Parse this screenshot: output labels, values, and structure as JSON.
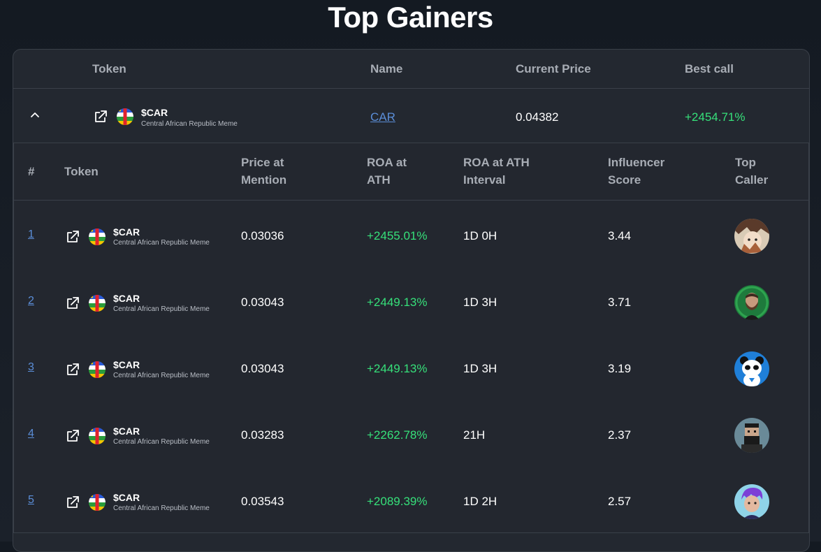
{
  "title": "Top Gainers",
  "outer_headers": {
    "token": "Token",
    "name": "Name",
    "current_price": "Current Price",
    "best_call": "Best call"
  },
  "outer_row": {
    "symbol": "$CAR",
    "full_name": "Central African Republic Meme",
    "name_link": "CAR",
    "current_price": "0.04382",
    "best_call": "+2454.71%",
    "expand_icon": "chevron-up-icon"
  },
  "inner_headers": {
    "rank": "#",
    "token": "Token",
    "price_at_mention": "Price at\nMention",
    "roa_at_ath": "ROA at\nATH",
    "roa_interval": "ROA at ATH\nInterval",
    "influencer_score": "Influencer\nScore",
    "top_caller": "Top\nCaller"
  },
  "rows": [
    {
      "rank": "1",
      "symbol": "$CAR",
      "full_name": "Central African Republic Meme",
      "price": "0.03036",
      "roa": "+2455.01%",
      "interval": "1D 0H",
      "score": "3.44",
      "avatar": "anime-avatar"
    },
    {
      "rank": "2",
      "symbol": "$CAR",
      "full_name": "Central African Republic Meme",
      "price": "0.03043",
      "roa": "+2449.13%",
      "interval": "1D 3H",
      "score": "3.71",
      "avatar": "bearded-man-avatar"
    },
    {
      "rank": "3",
      "symbol": "$CAR",
      "full_name": "Central African Republic Meme",
      "price": "0.03043",
      "roa": "+2449.13%",
      "interval": "1D 3H",
      "score": "3.19",
      "avatar": "panda-avatar"
    },
    {
      "rank": "4",
      "symbol": "$CAR",
      "full_name": "Central African Republic Meme",
      "price": "0.03283",
      "roa": "+2262.78%",
      "interval": "21H",
      "score": "2.37",
      "avatar": "pixel-man-avatar"
    },
    {
      "rank": "5",
      "symbol": "$CAR",
      "full_name": "Central African Republic Meme",
      "price": "0.03543",
      "roa": "+2089.39%",
      "interval": "1D 2H",
      "score": "2.57",
      "avatar": "purple-hair-avatar"
    }
  ],
  "colors": {
    "background": "#1b212a",
    "card": "#232830",
    "positive": "#36e07a",
    "link": "#5b8ed8",
    "header_text": "#a8adb5"
  }
}
